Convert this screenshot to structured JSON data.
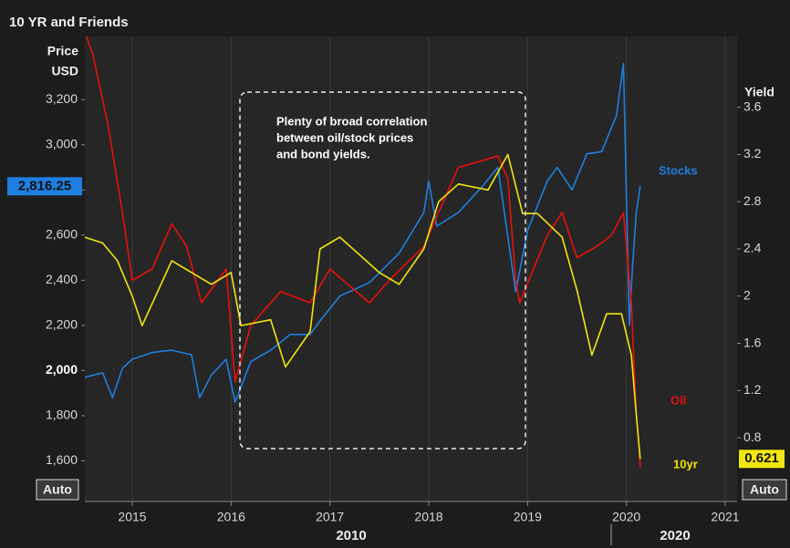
{
  "chart_data": {
    "type": "line",
    "title": "10 YR and Friends",
    "y_label_lines": [
      "Price",
      "USD"
    ],
    "y2_label": "Yield",
    "annotation_lines": [
      "Plenty of broad correlation",
      "between oil/stock prices",
      "and bond yields."
    ],
    "x_group_labels": [
      "2010",
      "2020"
    ],
    "buttons": [
      "Auto",
      "Auto"
    ],
    "xlim": [
      2014.52,
      2021.12
    ],
    "xticks": [
      2015,
      2016,
      2017,
      2018,
      2019,
      2020,
      2021
    ],
    "ylim": [
      1420,
      3480
    ],
    "yticks": [
      {
        "value": 1600,
        "label": "1,600"
      },
      {
        "value": 1800,
        "label": "1,800"
      },
      {
        "value": 2000,
        "label": "2,000"
      },
      {
        "value": 2200,
        "label": "2,200"
      },
      {
        "value": 2400,
        "label": "2,400"
      },
      {
        "value": 2600,
        "label": "2,600"
      },
      {
        "value": 2800,
        "label": "2,800"
      },
      {
        "value": 3000,
        "label": "3,000"
      },
      {
        "value": 3200,
        "label": "3,200"
      }
    ],
    "y2lim": [
      0.26,
      4.2
    ],
    "y2ticks": [
      0.8,
      1.2,
      1.6,
      2,
      2.4,
      2.8,
      3.2,
      3.6
    ],
    "grid": "x",
    "series": [
      {
        "name": "Stocks",
        "color": "#1f7fe0",
        "axis": "y",
        "last_label": "2,816.25",
        "x": [
          2014.52,
          2014.7,
          2014.8,
          2014.9,
          2015.0,
          2015.2,
          2015.4,
          2015.6,
          2015.68,
          2015.8,
          2015.95,
          2016.04,
          2016.2,
          2016.4,
          2016.6,
          2016.8,
          2016.9,
          2017.1,
          2017.4,
          2017.7,
          2017.95,
          2018.0,
          2018.08,
          2018.3,
          2018.55,
          2018.7,
          2018.88,
          2019.0,
          2019.2,
          2019.3,
          2019.45,
          2019.6,
          2019.75,
          2019.9,
          2019.97,
          2020.03,
          2020.06,
          2020.1,
          2020.14
        ],
        "values": [
          1970,
          1990,
          1880,
          2010,
          2050,
          2080,
          2090,
          2070,
          1880,
          1980,
          2050,
          1860,
          2040,
          2090,
          2160,
          2160,
          2220,
          2330,
          2390,
          2520,
          2700,
          2840,
          2640,
          2700,
          2820,
          2900,
          2350,
          2620,
          2840,
          2900,
          2800,
          2960,
          2970,
          3130,
          3360,
          2200,
          2450,
          2700,
          2816.25
        ]
      },
      {
        "name": "Oil",
        "color": "#e8100c",
        "axis": "y",
        "x": [
          2014.52,
          2014.6,
          2014.75,
          2014.9,
          2015.0,
          2015.2,
          2015.4,
          2015.55,
          2015.7,
          2015.95,
          2016.04,
          2016.2,
          2016.5,
          2016.8,
          2017.0,
          2017.4,
          2017.6,
          2017.95,
          2018.1,
          2018.3,
          2018.7,
          2018.8,
          2018.88,
          2018.92,
          2019.2,
          2019.35,
          2019.5,
          2019.7,
          2019.85,
          2019.97,
          2020.05,
          2020.1,
          2020.13,
          2020.14
        ],
        "values": [
          3500,
          3400,
          3100,
          2700,
          2400,
          2450,
          2650,
          2550,
          2300,
          2450,
          1950,
          2200,
          2350,
          2300,
          2450,
          2300,
          2400,
          2550,
          2700,
          2900,
          2950,
          2850,
          2400,
          2300,
          2600,
          2700,
          2500,
          2550,
          2600,
          2700,
          2300,
          1800,
          1650,
          1570
        ]
      },
      {
        "name": "10yr",
        "color": "#f2e60f",
        "axis": "y2",
        "last_label": "0.621",
        "x": [
          2014.52,
          2014.7,
          2014.85,
          2015.0,
          2015.1,
          2015.4,
          2015.6,
          2015.8,
          2016.0,
          2016.1,
          2016.4,
          2016.55,
          2016.8,
          2016.9,
          2017.1,
          2017.5,
          2017.7,
          2017.95,
          2018.1,
          2018.3,
          2018.6,
          2018.8,
          2018.95,
          2019.1,
          2019.35,
          2019.5,
          2019.65,
          2019.8,
          2019.95,
          2020.05,
          2020.1,
          2020.14
        ],
        "values": [
          2.5,
          2.45,
          2.3,
          2.0,
          1.75,
          2.3,
          2.2,
          2.1,
          2.2,
          1.75,
          1.8,
          1.4,
          1.7,
          2.4,
          2.5,
          2.2,
          2.1,
          2.4,
          2.8,
          2.95,
          2.9,
          3.2,
          2.7,
          2.7,
          2.5,
          2.05,
          1.5,
          1.85,
          1.85,
          1.5,
          1.0,
          0.621
        ]
      }
    ]
  }
}
